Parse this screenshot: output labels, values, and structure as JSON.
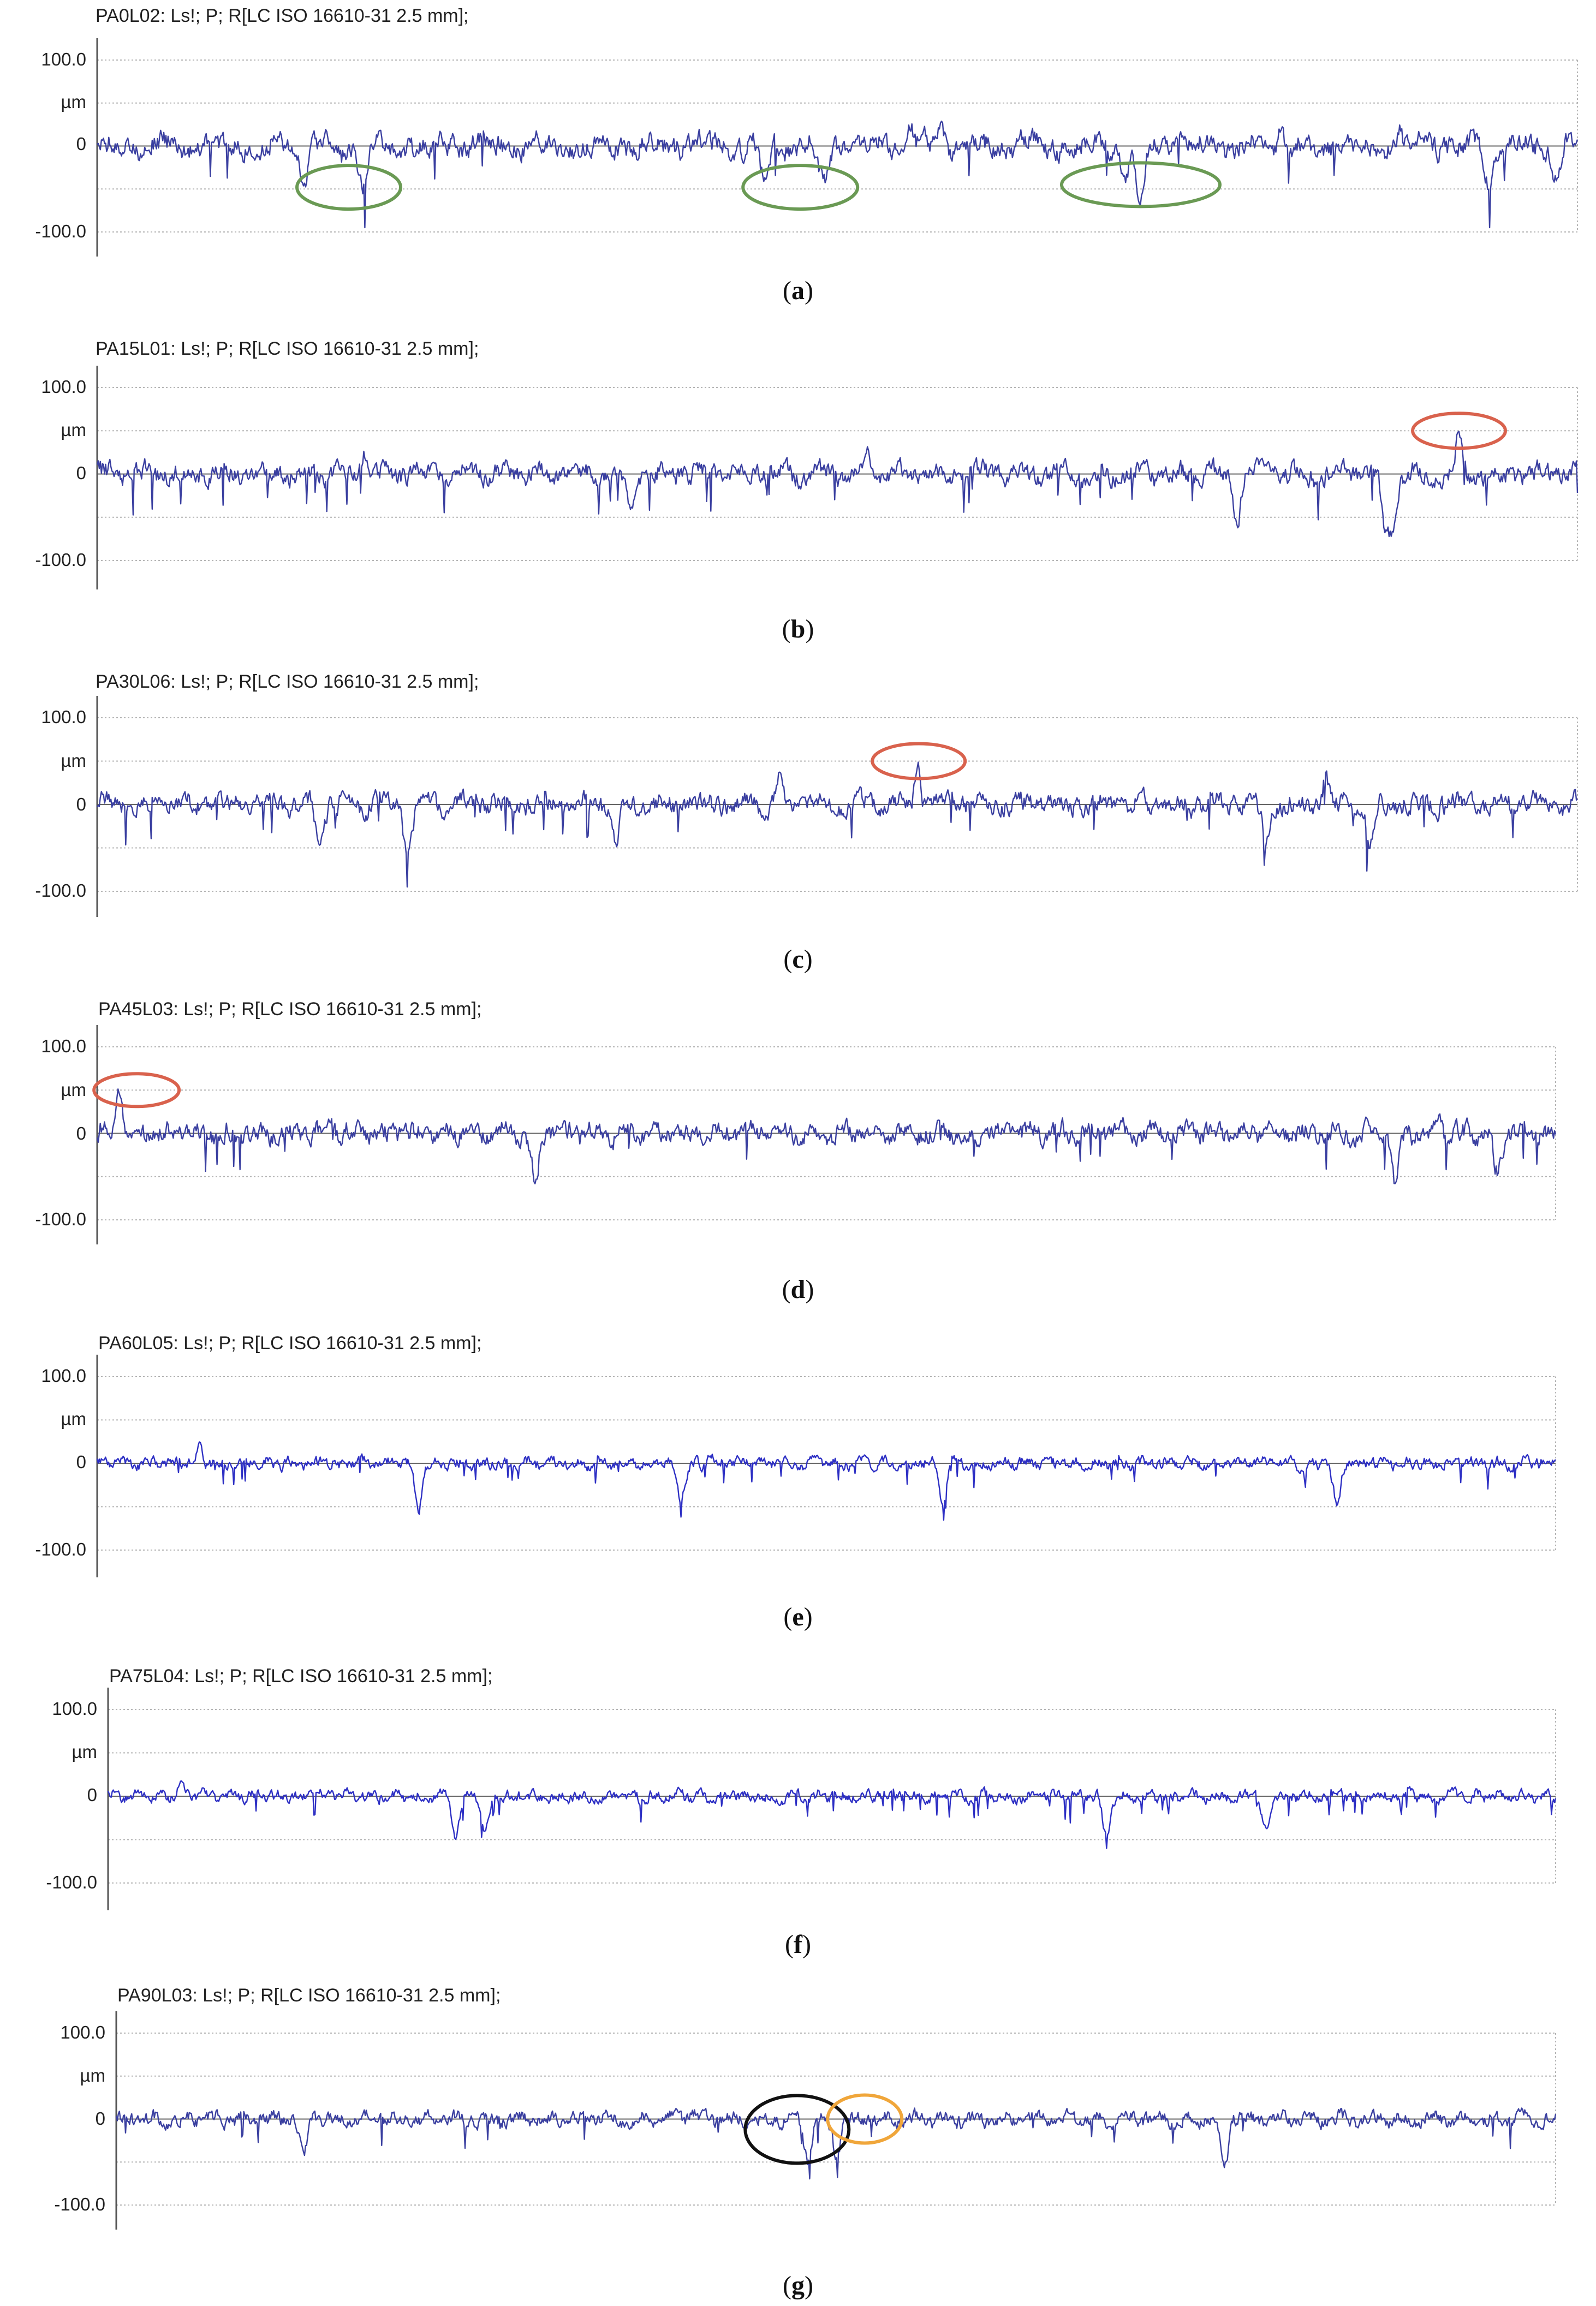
{
  "figure": {
    "panels": [
      {
        "title": "PA0L02: Ls!; P; R[LC ISO 16610-31 2.5 mm];",
        "caption_letter": "a",
        "y_tick_labels": [
          "100.0",
          "µm",
          "0",
          "-100.0"
        ],
        "callouts": [
          {
            "color": "#6a9a54"
          },
          {
            "color": "#6a9a54"
          },
          {
            "color": "#6a9a54"
          }
        ]
      },
      {
        "title": "PA15L01: Ls!; P; R[LC ISO 16610-31 2.5 mm];",
        "caption_letter": "b",
        "y_tick_labels": [
          "100.0",
          "µm",
          "0",
          "-100.0"
        ],
        "callouts": [
          {
            "color": "#d9624d"
          }
        ]
      },
      {
        "title": "PA30L06: Ls!; P; R[LC ISO 16610-31 2.5 mm];",
        "caption_letter": "c",
        "y_tick_labels": [
          "100.0",
          "µm",
          "0",
          "-100.0"
        ],
        "callouts": [
          {
            "color": "#d9624d"
          }
        ]
      },
      {
        "title": "PA45L03: Ls!; P; R[LC ISO 16610-31 2.5 mm];",
        "caption_letter": "d",
        "y_tick_labels": [
          "100.0",
          "µm",
          "0",
          "-100.0"
        ],
        "callouts": [
          {
            "color": "#d9624d"
          }
        ]
      },
      {
        "title": "PA60L05: Ls!; P; R[LC ISO 16610-31 2.5 mm];",
        "caption_letter": "e",
        "y_tick_labels": [
          "100.0",
          "µm",
          "0",
          "-100.0"
        ],
        "callouts": []
      },
      {
        "title": "PA75L04: Ls!; P; R[LC ISO 16610-31 2.5 mm];",
        "caption_letter": "f",
        "y_tick_labels": [
          "100.0",
          "µm",
          "0",
          "-100.0"
        ],
        "callouts": []
      },
      {
        "title": "PA90L03: Ls!; P; R[LC ISO 16610-31 2.5 mm];",
        "caption_letter": "g",
        "y_tick_labels": [
          "100.0",
          "µm",
          "0",
          "-100.0"
        ],
        "callouts": [
          {
            "color": "#111111"
          },
          {
            "color": "#f0a63a"
          }
        ]
      }
    ]
  },
  "chart_data": [
    {
      "type": "line",
      "title": "PA0L02: Ls!; P; R[LC ISO 16610-31 2.5 mm];",
      "ylabel": "µm",
      "ylim": [
        -100,
        100
      ],
      "yticks": [
        100,
        0,
        -100
      ],
      "grid": true,
      "series_color": "#3a3fa0",
      "profile": {
        "amplitude": 16,
        "frequency": "low",
        "deep_valleys": [
          [
            0.14,
            -42
          ],
          [
            0.18,
            -48
          ],
          [
            0.45,
            -44
          ],
          [
            0.49,
            -50
          ],
          [
            0.695,
            -45
          ],
          [
            0.705,
            -62
          ],
          [
            0.94,
            -40
          ],
          [
            0.985,
            -38
          ]
        ],
        "peaks": [
          [
            0.55,
            26
          ],
          [
            0.57,
            22
          ],
          [
            0.8,
            30
          ],
          [
            0.88,
            22
          ]
        ]
      }
    },
    {
      "type": "line",
      "title": "PA15L01: Ls!; P; R[LC ISO 16610-31 2.5 mm];",
      "ylabel": "µm",
      "ylim": [
        -100,
        100
      ],
      "yticks": [
        100,
        0,
        -100
      ],
      "grid": true,
      "series_color": "#3a3fa0",
      "profile": {
        "amplitude": 14,
        "frequency": "medium",
        "deep_valleys": [
          [
            0.36,
            -45
          ],
          [
            0.77,
            -55
          ],
          [
            0.87,
            -60
          ],
          [
            0.875,
            -48
          ]
        ],
        "peaks": [
          [
            0.18,
            28
          ],
          [
            0.52,
            30
          ],
          [
            0.92,
            55
          ]
        ]
      }
    },
    {
      "type": "line",
      "title": "PA30L06: Ls!; P; R[LC ISO 16610-31 2.5 mm];",
      "ylabel": "µm",
      "ylim": [
        -100,
        100
      ],
      "yticks": [
        100,
        0,
        -100
      ],
      "grid": true,
      "series_color": "#3a3fa0",
      "profile": {
        "amplitude": 14,
        "frequency": "medium",
        "deep_valleys": [
          [
            0.15,
            -50
          ],
          [
            0.21,
            -60
          ],
          [
            0.35,
            -48
          ],
          [
            0.79,
            -50
          ],
          [
            0.86,
            -45
          ]
        ],
        "peaks": [
          [
            0.46,
            30
          ],
          [
            0.555,
            50
          ],
          [
            0.83,
            35
          ]
        ]
      }
    },
    {
      "type": "line",
      "title": "PA45L03: Ls!; P; R[LC ISO 16610-31 2.5 mm];",
      "ylabel": "µm",
      "ylim": [
        -100,
        100
      ],
      "yticks": [
        100,
        0,
        -100
      ],
      "grid": true,
      "series_color": "#3a3fa0",
      "profile": {
        "amplitude": 14,
        "frequency": "high",
        "deep_valleys": [
          [
            0.3,
            -52
          ],
          [
            0.89,
            -58
          ],
          [
            0.96,
            -45
          ]
        ],
        "peaks": [
          [
            0.015,
            48
          ],
          [
            0.16,
            25
          ],
          [
            0.92,
            28
          ]
        ]
      }
    },
    {
      "type": "line",
      "title": "PA60L05: Ls!; P; R[LC ISO 16610-31 2.5 mm];",
      "ylabel": "µm",
      "ylim": [
        -100,
        100
      ],
      "yticks": [
        100,
        0,
        -100
      ],
      "grid": true,
      "series_color": "#2d2fc4",
      "profile": {
        "amplitude": 8,
        "frequency": "very-high",
        "deep_valleys": [
          [
            0.22,
            -52
          ],
          [
            0.4,
            -40
          ],
          [
            0.58,
            -42
          ],
          [
            0.85,
            -45
          ]
        ],
        "peaks": [
          [
            0.07,
            15
          ],
          [
            0.42,
            10
          ]
        ]
      }
    },
    {
      "type": "line",
      "title": "PA75L04: Ls!; P; R[LC ISO 16610-31 2.5 mm];",
      "ylabel": "µm",
      "ylim": [
        -100,
        100
      ],
      "yticks": [
        100,
        0,
        -100
      ],
      "grid": true,
      "series_color": "#2d2fc4",
      "profile": {
        "amplitude": 8,
        "frequency": "very-high",
        "deep_valleys": [
          [
            0.24,
            -50
          ],
          [
            0.26,
            -45
          ],
          [
            0.69,
            -48
          ],
          [
            0.8,
            -42
          ]
        ],
        "peaks": [
          [
            0.05,
            15
          ],
          [
            0.9,
            12
          ]
        ]
      }
    },
    {
      "type": "line",
      "title": "PA90L03: Ls!; P; R[LC ISO 16610-31 2.5 mm];",
      "ylabel": "µm",
      "ylim": [
        -100,
        100
      ],
      "yticks": [
        100,
        0,
        -100
      ],
      "grid": true,
      "series_color": "#3a3fa0",
      "profile": {
        "amplitude": 10,
        "frequency": "high",
        "deep_valleys": [
          [
            0.13,
            -40
          ],
          [
            0.48,
            -45
          ],
          [
            0.5,
            -42
          ],
          [
            0.77,
            -60
          ]
        ],
        "peaks": [
          [
            0.4,
            8
          ]
        ]
      }
    }
  ]
}
